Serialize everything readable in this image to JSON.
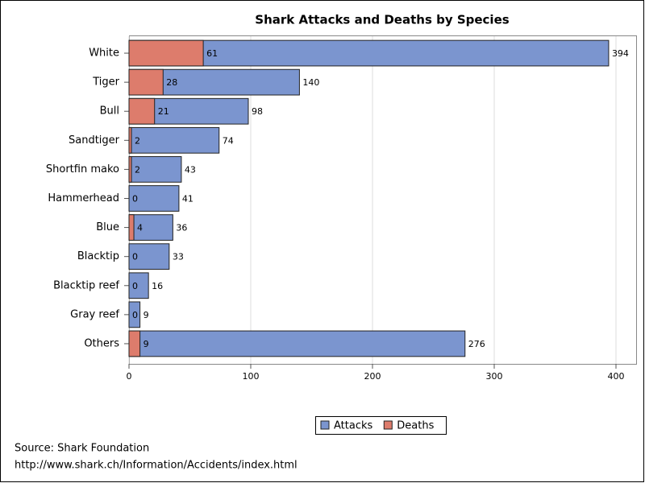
{
  "chart_data": {
    "type": "hbar",
    "title": "Shark Attacks and Deaths by Species",
    "categories": [
      "White",
      "Tiger",
      "Bull",
      "Sandtiger",
      "Shortfin mako",
      "Hammerhead",
      "Blue",
      "Blacktip",
      "Blacktip reef",
      "Gray reef",
      "Others"
    ],
    "series": [
      {
        "name": "Attacks",
        "color": "#7b95cf",
        "values": [
          394,
          140,
          98,
          74,
          43,
          41,
          36,
          33,
          16,
          9,
          276
        ]
      },
      {
        "name": "Deaths",
        "color": "#dd7c6c",
        "values": [
          61,
          28,
          21,
          2,
          2,
          0,
          4,
          0,
          0,
          0,
          9
        ]
      }
    ],
    "xlim": [
      0,
      400
    ],
    "xticks": [
      0,
      100,
      200,
      300,
      400
    ],
    "grid": true,
    "footnotes": [
      "Source: Shark Foundation",
      "http://www.shark.ch/Information/Accidents/index.html"
    ]
  }
}
